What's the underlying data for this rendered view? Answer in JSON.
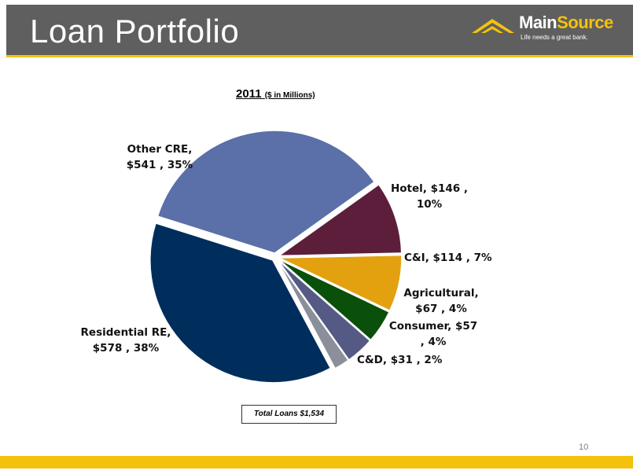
{
  "header": {
    "title": "Loan Portfolio",
    "logo": {
      "name_part1": "Main",
      "name_part2": "Source",
      "tagline": "Life needs a great bank."
    }
  },
  "chart_data": {
    "type": "pie",
    "title": "2011",
    "subtitle": "($ in Millions)",
    "slices": [
      {
        "name": "Hotel",
        "value": 146,
        "percent": 10,
        "color": "#5c1e3a",
        "label_line1": "Hotel,  $146 ,",
        "label_line2": "10%"
      },
      {
        "name": "C&I",
        "value": 114,
        "percent": 7,
        "color": "#e3a110",
        "label_line1": "C&I,  $114 , 7%",
        "label_line2": ""
      },
      {
        "name": "Agricultural",
        "value": 67,
        "percent": 4,
        "color": "#0a4f0a",
        "label_line1": "Agricultural,",
        "label_line2": "$67 , 4%"
      },
      {
        "name": "Consumer",
        "value": 57,
        "percent": 4,
        "color": "#555a85",
        "label_line1": "Consumer,  $57",
        "label_line2": ", 4%"
      },
      {
        "name": "C&D",
        "value": 31,
        "percent": 2,
        "color": "#8a8f99",
        "label_line1": "C&D,  $31 , 2%",
        "label_line2": ""
      },
      {
        "name": "Residential RE",
        "value": 578,
        "percent": 38,
        "color": "#002e5c",
        "label_line1": "Residential RE,",
        "label_line2": "$578 , 38%"
      },
      {
        "name": "Other CRE",
        "value": 541,
        "percent": 35,
        "color": "#5b6fa8",
        "label_line1": "Other CRE,",
        "label_line2": "$541 , 35%"
      }
    ],
    "total_label": "Total Loans $1,534"
  },
  "page_number": "10",
  "colors": {
    "header_bg": "#5f5f5f",
    "brand_yellow": "#f4c20d"
  }
}
